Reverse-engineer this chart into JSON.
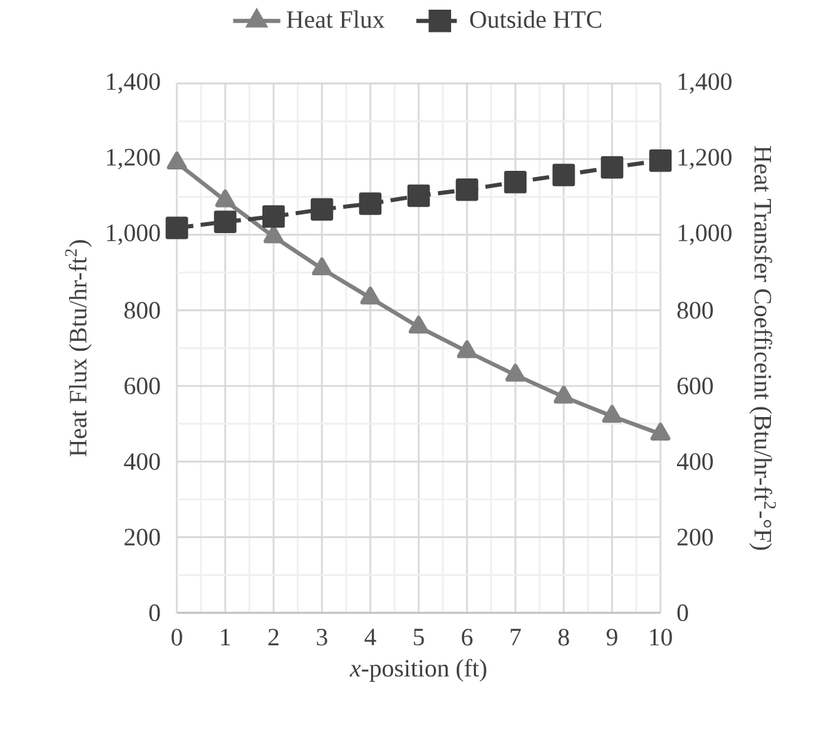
{
  "chart_data": {
    "type": "line",
    "xlabel": "*x*-position (ft)",
    "ylabel": "Heat Flux (Btu/hr-ft$^{2}$)",
    "y2label": "Heat Transfer Coefficeint (Btu/hr-ft$^{2}$-°F)",
    "x": [
      0,
      1,
      2,
      3,
      4,
      5,
      6,
      7,
      8,
      9,
      10
    ],
    "series": [
      {
        "name": "Heat Flux",
        "color": "#808080",
        "marker": "triangle",
        "line_style": "solid",
        "values": [
          1190,
          1090,
          995,
          910,
          833,
          756,
          691,
          629,
          571,
          520,
          473
        ]
      },
      {
        "name": "Outside HTC",
        "color": "#404040",
        "marker": "square",
        "line_style": "dashed",
        "axis": "y2",
        "values": [
          1018,
          1034,
          1048,
          1067,
          1082,
          1103,
          1119,
          1139,
          1158,
          1178,
          1196
        ]
      }
    ],
    "xlim": [
      0,
      10
    ],
    "xticks": [
      0,
      1,
      2,
      3,
      4,
      5,
      6,
      7,
      8,
      9,
      10
    ],
    "ylim": [
      0,
      1400
    ],
    "yticks": [
      0,
      200,
      400,
      600,
      800,
      {
        "value": 1000,
        "label": "1,000"
      },
      {
        "value": 1200,
        "label": "1,200"
      },
      {
        "value": 1400,
        "label": "1,400"
      }
    ],
    "y2lim": [
      0,
      1400
    ],
    "y2ticks": [
      0,
      200,
      400,
      600,
      800,
      {
        "value": 1000,
        "label": "1,000"
      },
      {
        "value": 1200,
        "label": "1,200"
      },
      {
        "value": 1400,
        "label": "1,400"
      }
    ],
    "grid": true,
    "legend": "top"
  }
}
